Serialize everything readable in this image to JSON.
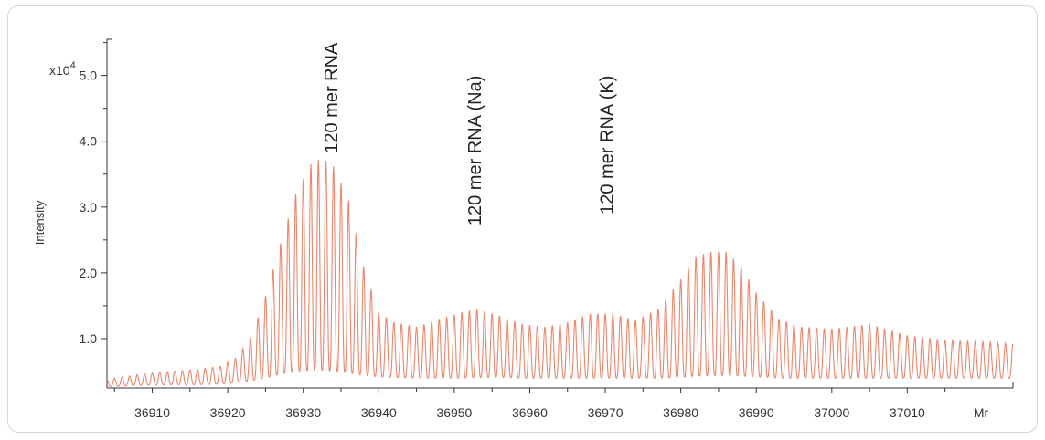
{
  "chart_data": {
    "type": "line",
    "xlabel": "Mr",
    "ylabel": "Intensity",
    "y_multiplier": "x10",
    "y_multiplier_exp": "4",
    "xlim": [
      36904,
      37024
    ],
    "ylim": [
      0.25,
      5.55
    ],
    "x_ticks": [
      "36910",
      "36920",
      "36930",
      "36940",
      "36950",
      "36960",
      "36970",
      "36980",
      "36990",
      "37000",
      "37010"
    ],
    "y_ticks": [
      "1.0",
      "2.0",
      "3.0",
      "4.0",
      "5.0"
    ],
    "grid": false,
    "line_color": "#e9866c",
    "annotations": [
      {
        "text": "120 mer RNA",
        "x": 36934.5,
        "y": 5.5
      },
      {
        "text": "120 mer RNA (Na)",
        "x": 36953.5,
        "y": 5.0
      },
      {
        "text": "120 mer RNA (K)",
        "x": 36971.0,
        "y": 5.0
      }
    ],
    "envelope": {
      "x": [
        36904,
        36908,
        36912,
        36916,
        36919,
        36921,
        36923,
        36925,
        36927,
        36929,
        36931,
        36932.5,
        36934,
        36936,
        36938,
        36940,
        36942,
        36945,
        36948,
        36951,
        36953,
        36956,
        36959,
        36962,
        36965,
        36968,
        36971,
        36974,
        36977,
        36980,
        36982,
        36984,
        36986,
        36988,
        36990,
        36993,
        36996,
        37000,
        37005,
        37010,
        37015,
        37020,
        37024
      ],
      "peak": [
        0.38,
        0.45,
        0.5,
        0.53,
        0.58,
        0.7,
        1.0,
        1.65,
        2.45,
        3.2,
        3.65,
        3.75,
        3.62,
        3.1,
        2.1,
        1.4,
        1.25,
        1.18,
        1.3,
        1.4,
        1.45,
        1.35,
        1.22,
        1.18,
        1.25,
        1.38,
        1.38,
        1.28,
        1.45,
        1.9,
        2.25,
        2.32,
        2.32,
        2.1,
        1.7,
        1.3,
        1.18,
        1.15,
        1.22,
        1.05,
        0.98,
        0.95,
        0.92
      ],
      "base": [
        0.27,
        0.29,
        0.3,
        0.3,
        0.31,
        0.33,
        0.36,
        0.4,
        0.46,
        0.5,
        0.52,
        0.52,
        0.51,
        0.48,
        0.44,
        0.42,
        0.41,
        0.4,
        0.4,
        0.4,
        0.41,
        0.41,
        0.4,
        0.4,
        0.4,
        0.4,
        0.4,
        0.4,
        0.4,
        0.41,
        0.43,
        0.44,
        0.44,
        0.43,
        0.42,
        0.4,
        0.4,
        0.4,
        0.4,
        0.4,
        0.4,
        0.4,
        0.4
      ]
    },
    "spacing": 1.0
  }
}
